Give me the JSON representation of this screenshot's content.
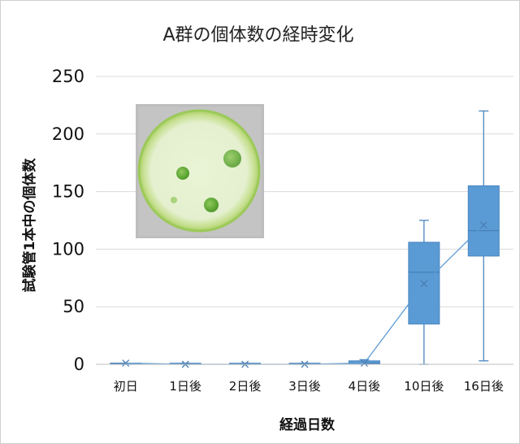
{
  "chart_data": {
    "type": "box",
    "title": "A群の個体数の経時変化",
    "xlabel": "経過日数",
    "ylabel": "試験管1本中の個体数",
    "ylim": [
      0,
      250
    ],
    "yticks": [
      0,
      50,
      100,
      150,
      200,
      250
    ],
    "grid": true,
    "colors": {
      "box": "#5b9bd5",
      "box_edge": "#4a86c0",
      "line": "#5b9bd5",
      "grid": "#d9d9d9"
    },
    "categories": [
      "初日",
      "1日後",
      "2日後",
      "3日後",
      "4日後",
      "10日後",
      "16日後"
    ],
    "boxes": [
      {
        "min": 0,
        "q1": 0,
        "median": 1,
        "q3": 1,
        "max": 1,
        "mean": 1
      },
      {
        "min": 0,
        "q1": 0,
        "median": 0,
        "q3": 1,
        "max": 1,
        "mean": 0
      },
      {
        "min": 0,
        "q1": 0,
        "median": 0,
        "q3": 1,
        "max": 1,
        "mean": 0
      },
      {
        "min": 0,
        "q1": 0,
        "median": 0,
        "q3": 1,
        "max": 1,
        "mean": 0
      },
      {
        "min": 0,
        "q1": 0,
        "median": 1,
        "q3": 3,
        "max": 4,
        "mean": 1
      },
      {
        "min": 0,
        "q1": 35,
        "median": 80,
        "q3": 106,
        "max": 125,
        "mean": 70
      },
      {
        "min": 3,
        "q1": 94,
        "median": 116,
        "q3": 155,
        "max": 220,
        "mean": 121
      }
    ],
    "inset_image": "culture-dish-photo"
  }
}
